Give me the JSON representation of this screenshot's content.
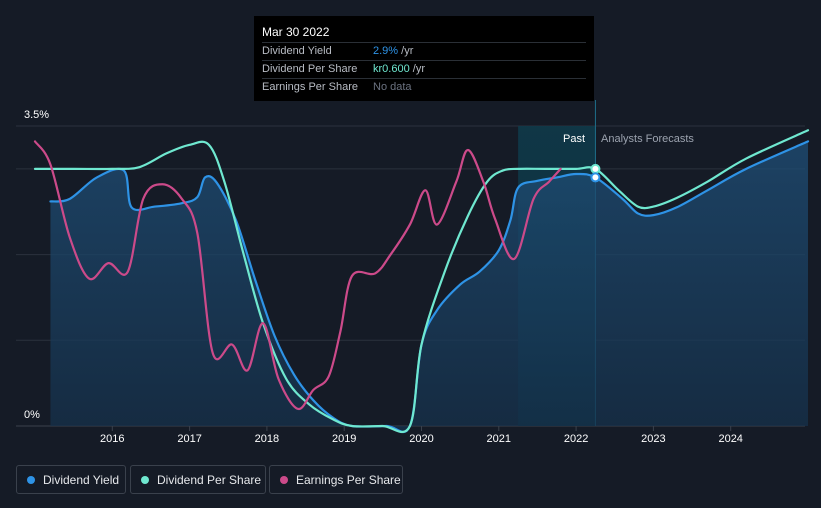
{
  "chart_data": {
    "type": "line",
    "x_range": [
      2015.0,
      2025.0
    ],
    "ylim": [
      0,
      3.5
    ],
    "y_axis_labels": [
      "3.5%",
      "0%"
    ],
    "x_ticks": [
      "2016",
      "2017",
      "2018",
      "2019",
      "2020",
      "2021",
      "2022",
      "2023",
      "2024"
    ],
    "past_label": "Past",
    "forecast_label": "Analysts Forecasts",
    "past_forecast_split": 2022.25,
    "past_shade_start": 2021.25,
    "series": [
      {
        "name": "Dividend Yield",
        "color": "#2e93e6",
        "area": true,
        "points": [
          [
            2015.2,
            2.62
          ],
          [
            2015.45,
            2.65
          ],
          [
            2015.8,
            2.9
          ],
          [
            2016.15,
            2.98
          ],
          [
            2016.25,
            2.55
          ],
          [
            2016.55,
            2.56
          ],
          [
            2016.9,
            2.6
          ],
          [
            2017.1,
            2.67
          ],
          [
            2017.2,
            2.9
          ],
          [
            2017.35,
            2.84
          ],
          [
            2017.6,
            2.4
          ],
          [
            2017.85,
            1.7
          ],
          [
            2018.1,
            1.05
          ],
          [
            2018.35,
            0.6
          ],
          [
            2018.6,
            0.3
          ],
          [
            2018.85,
            0.1
          ],
          [
            2019.1,
            0.0
          ],
          [
            2019.55,
            0.0
          ],
          [
            2019.85,
            0.0
          ],
          [
            2020.0,
            0.95
          ],
          [
            2020.2,
            1.35
          ],
          [
            2020.5,
            1.65
          ],
          [
            2020.75,
            1.8
          ],
          [
            2021.0,
            2.05
          ],
          [
            2021.15,
            2.4
          ],
          [
            2021.25,
            2.78
          ],
          [
            2021.5,
            2.86
          ],
          [
            2021.75,
            2.9
          ],
          [
            2022.0,
            2.94
          ],
          [
            2022.25,
            2.9
          ],
          [
            2022.6,
            2.65
          ],
          [
            2022.8,
            2.48
          ],
          [
            2023.0,
            2.46
          ],
          [
            2023.3,
            2.55
          ],
          [
            2023.7,
            2.75
          ],
          [
            2024.2,
            3.0
          ],
          [
            2025.0,
            3.32
          ]
        ]
      },
      {
        "name": "Dividend Per Share",
        "color": "#6fe8d0",
        "area": false,
        "points": [
          [
            2015.0,
            3.0
          ],
          [
            2015.5,
            3.0
          ],
          [
            2016.0,
            3.0
          ],
          [
            2016.35,
            3.02
          ],
          [
            2016.7,
            3.18
          ],
          [
            2017.0,
            3.28
          ],
          [
            2017.25,
            3.28
          ],
          [
            2017.45,
            2.85
          ],
          [
            2017.7,
            2.0
          ],
          [
            2017.95,
            1.2
          ],
          [
            2018.25,
            0.55
          ],
          [
            2018.55,
            0.25
          ],
          [
            2018.85,
            0.08
          ],
          [
            2019.1,
            0.0
          ],
          [
            2019.5,
            0.0
          ],
          [
            2019.85,
            0.0
          ],
          [
            2020.0,
            0.95
          ],
          [
            2020.3,
            1.8
          ],
          [
            2020.6,
            2.45
          ],
          [
            2020.85,
            2.85
          ],
          [
            2021.05,
            2.98
          ],
          [
            2021.25,
            3.0
          ],
          [
            2021.6,
            3.0
          ],
          [
            2022.0,
            3.0
          ],
          [
            2022.25,
            3.0
          ],
          [
            2022.55,
            2.75
          ],
          [
            2022.8,
            2.56
          ],
          [
            2023.0,
            2.56
          ],
          [
            2023.3,
            2.66
          ],
          [
            2023.7,
            2.85
          ],
          [
            2024.2,
            3.12
          ],
          [
            2025.0,
            3.45
          ]
        ]
      },
      {
        "name": "Earnings Per Share",
        "color": "#cc4a8a",
        "area": false,
        "points": [
          [
            2015.0,
            3.32
          ],
          [
            2015.2,
            3.05
          ],
          [
            2015.45,
            2.2
          ],
          [
            2015.7,
            1.72
          ],
          [
            2015.95,
            1.9
          ],
          [
            2016.2,
            1.8
          ],
          [
            2016.4,
            2.65
          ],
          [
            2016.65,
            2.82
          ],
          [
            2016.9,
            2.65
          ],
          [
            2017.1,
            2.25
          ],
          [
            2017.3,
            0.85
          ],
          [
            2017.55,
            0.95
          ],
          [
            2017.75,
            0.65
          ],
          [
            2017.95,
            1.2
          ],
          [
            2018.15,
            0.55
          ],
          [
            2018.4,
            0.2
          ],
          [
            2018.6,
            0.42
          ],
          [
            2018.8,
            0.58
          ],
          [
            2018.95,
            1.1
          ],
          [
            2019.1,
            1.75
          ],
          [
            2019.4,
            1.78
          ],
          [
            2019.6,
            2.0
          ],
          [
            2019.85,
            2.35
          ],
          [
            2020.05,
            2.75
          ],
          [
            2020.2,
            2.35
          ],
          [
            2020.45,
            2.85
          ],
          [
            2020.6,
            3.22
          ],
          [
            2020.8,
            2.85
          ],
          [
            2020.95,
            2.42
          ],
          [
            2021.2,
            1.95
          ],
          [
            2021.45,
            2.65
          ],
          [
            2021.65,
            2.85
          ],
          [
            2021.8,
            3.0
          ]
        ]
      }
    ]
  },
  "tooltip": {
    "date": "Mar 30 2022",
    "rows": [
      {
        "label": "Dividend Yield",
        "value": "2.9%",
        "unit": " /yr",
        "color": "#2e93e6"
      },
      {
        "label": "Dividend Per Share",
        "value": "kr0.600",
        "unit": " /yr",
        "color": "#6fe8d0"
      },
      {
        "label": "Earnings Per Share",
        "value": "No data",
        "unit": "",
        "color": "#6b7280"
      }
    ]
  },
  "legend": [
    {
      "label": "Dividend Yield",
      "color": "#2e93e6"
    },
    {
      "label": "Dividend Per Share",
      "color": "#6fe8d0"
    },
    {
      "label": "Earnings Per Share",
      "color": "#cc4a8a"
    }
  ]
}
